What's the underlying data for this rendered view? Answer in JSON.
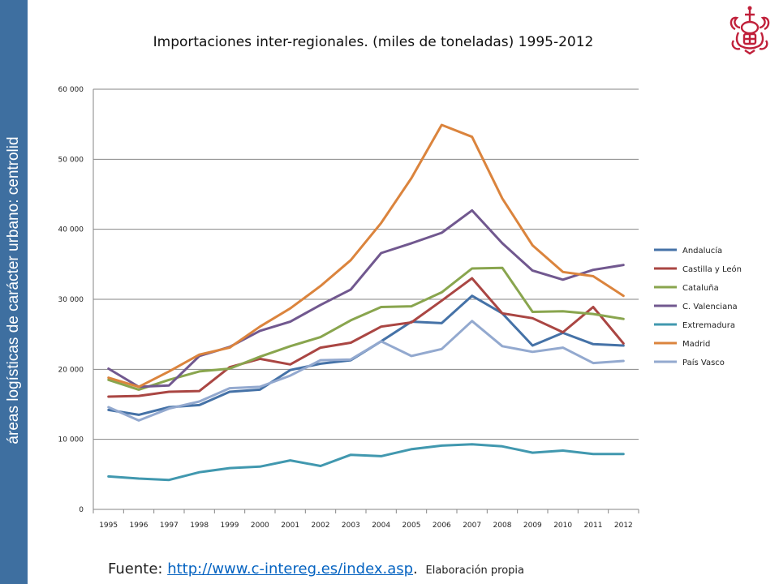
{
  "sidebar": {
    "text": "áreas logísticas de carácter urbano: centrolid"
  },
  "footer": {
    "prefix": "Fuente: ",
    "link": "http://www.c-intereg.es/index.asp",
    "punct": ".",
    "note": "Elaboración propia"
  },
  "chart_data": {
    "type": "line",
    "title": "Importaciones inter-regionales. (miles de toneladas) 1995-2012",
    "xlabel": "",
    "ylabel": "",
    "categories": [
      "1995",
      "1996",
      "1997",
      "1998",
      "1999",
      "2000",
      "2001",
      "2002",
      "2003",
      "2004",
      "2005",
      "2006",
      "2007",
      "2008",
      "2009",
      "2010",
      "2011",
      "2012"
    ],
    "ylim": [
      0,
      60000
    ],
    "yticks": [
      0,
      10000,
      20000,
      30000,
      40000,
      50000,
      60000
    ],
    "ytick_labels": [
      "0",
      "10 000",
      "20 000",
      "30 000",
      "40 000",
      "50 000",
      "60 000"
    ],
    "grid": true,
    "legend_position": "right",
    "series": [
      {
        "name": "Andalucía",
        "color": "#4572a7",
        "values": [
          14200,
          13500,
          14600,
          14900,
          16800,
          17100,
          19900,
          20800,
          21300,
          24000,
          26800,
          26600,
          30500,
          28000,
          23400,
          25200,
          23600,
          23400
        ]
      },
      {
        "name": "Castilla y León",
        "color": "#aa4643",
        "values": [
          16100,
          16200,
          16800,
          16900,
          20300,
          21500,
          20700,
          23100,
          23800,
          26100,
          26700,
          29800,
          33000,
          28000,
          27300,
          25300,
          28900,
          23700
        ]
      },
      {
        "name": "Cataluña",
        "color": "#89a54e",
        "values": [
          18500,
          17100,
          18500,
          19700,
          20100,
          21800,
          23300,
          24600,
          27000,
          28900,
          29000,
          31000,
          34400,
          34500,
          28200,
          28300,
          27900,
          27200
        ]
      },
      {
        "name": "C. Valenciana",
        "color": "#71588f",
        "values": [
          20100,
          17500,
          17700,
          21900,
          23200,
          25500,
          26800,
          29200,
          31400,
          36600,
          38000,
          39500,
          42700,
          38000,
          34100,
          32800,
          34200,
          34900
        ]
      },
      {
        "name": "Extremadura",
        "color": "#4198af",
        "values": [
          4700,
          4400,
          4200,
          5300,
          5900,
          6100,
          7000,
          6200,
          7800,
          7600,
          8600,
          9100,
          9300,
          9000,
          8100,
          8400,
          7900,
          7900
        ]
      },
      {
        "name": "Madrid",
        "color": "#db843d",
        "values": [
          18800,
          17500,
          19700,
          22100,
          23100,
          26100,
          28700,
          31900,
          35600,
          40900,
          47300,
          54900,
          53200,
          44400,
          37700,
          33900,
          33300,
          30500
        ]
      },
      {
        "name": "País Vasco",
        "color": "#93a9cf",
        "values": [
          14600,
          12700,
          14400,
          15400,
          17300,
          17500,
          19100,
          21300,
          21400,
          24000,
          21900,
          22900,
          26900,
          23300,
          22500,
          23100,
          20900,
          21200
        ]
      }
    ]
  }
}
